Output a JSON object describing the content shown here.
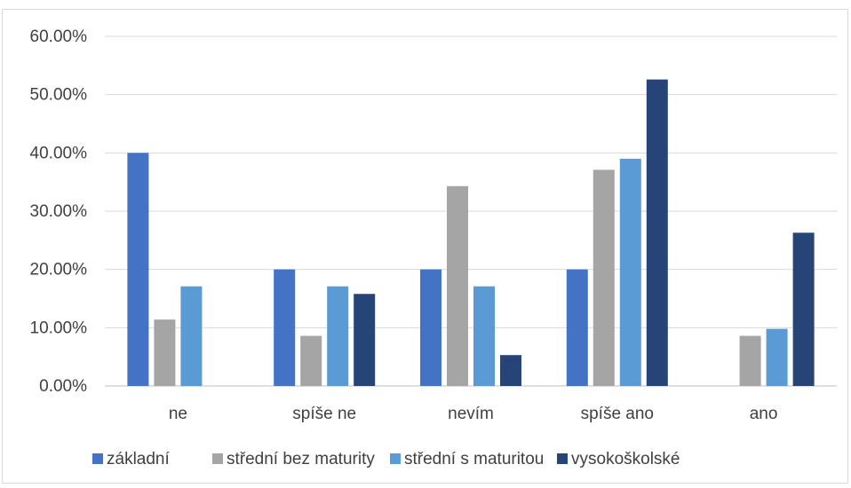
{
  "chart_data": {
    "type": "bar",
    "title": "",
    "xlabel": "",
    "ylabel": "",
    "ylim": [
      0,
      0.6
    ],
    "y_ticks": [
      "0.00%",
      "10.00%",
      "20.00%",
      "30.00%",
      "40.00%",
      "50.00%",
      "60.00%"
    ],
    "y_tick_values": [
      0,
      0.1,
      0.2,
      0.3,
      0.4,
      0.5,
      0.6
    ],
    "grid": true,
    "legend_position": "bottom",
    "categories": [
      "ne",
      "spíše ne",
      "nevím",
      "spíše ano",
      "ano"
    ],
    "series": [
      {
        "name": "základní",
        "color": "#4472c4",
        "values": [
          0.4,
          0.2,
          0.2,
          0.2,
          0.0
        ]
      },
      {
        "name": "střední bez maturity",
        "color": "#a5a5a5",
        "values": [
          0.114,
          0.086,
          0.343,
          0.371,
          0.086
        ]
      },
      {
        "name": "střední s maturitou",
        "color": "#5b9bd5",
        "values": [
          0.171,
          0.171,
          0.171,
          0.39,
          0.098
        ]
      },
      {
        "name": "vysokoškolské",
        "color": "#264478",
        "values": [
          0.0,
          0.158,
          0.053,
          0.526,
          0.263
        ]
      }
    ]
  }
}
